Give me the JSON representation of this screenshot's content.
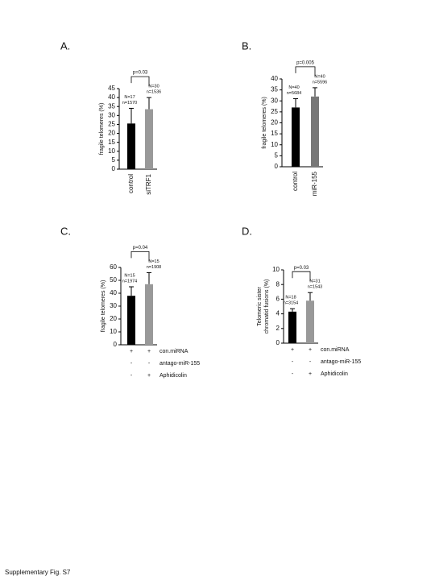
{
  "chart_data": [
    {
      "type": "bar",
      "panel": "A.",
      "ylabel": "fragile telomeres (%)",
      "categories": [
        "control",
        "siTRF1"
      ],
      "values": [
        25.5,
        33.5
      ],
      "errors": [
        8.5,
        6.5
      ],
      "colors": [
        "#000000",
        "#999999"
      ],
      "ylim": [
        0,
        45
      ],
      "yticks": [
        0,
        5,
        10,
        15,
        20,
        25,
        30,
        35,
        40,
        45
      ],
      "p_value": "p=0.03",
      "bar_labels": [
        [
          "N=17",
          "n=1570"
        ],
        [
          "N=30",
          "n=1536"
        ]
      ]
    },
    {
      "type": "bar",
      "panel": "B.",
      "ylabel": "fragile telomeres (%)",
      "categories": [
        "control",
        "miR-155"
      ],
      "values": [
        27,
        32
      ],
      "errors": [
        4,
        4
      ],
      "colors": [
        "#000000",
        "#777777"
      ],
      "ylim": [
        0,
        40
      ],
      "yticks": [
        0,
        5,
        10,
        15,
        20,
        25,
        30,
        35,
        40
      ],
      "p_value": "p=0.005",
      "bar_labels": [
        [
          "N=40",
          "n=5684"
        ],
        [
          "N=40",
          "n=5596"
        ]
      ]
    },
    {
      "type": "bar",
      "panel": "C.",
      "ylabel": "fragile telomeres (%)",
      "values": [
        38,
        47
      ],
      "errors": [
        7,
        9
      ],
      "colors": [
        "#000000",
        "#999999"
      ],
      "ylim": [
        0,
        60
      ],
      "yticks": [
        0,
        10,
        20,
        30,
        40,
        50,
        60
      ],
      "p_value": "p=0.04",
      "bar_labels": [
        [
          "N=15",
          "n=1974"
        ],
        [
          "N=15",
          "n=1908"
        ]
      ],
      "conditions": [
        {
          "label": "con.miRNA",
          "signs": [
            "+",
            "+"
          ]
        },
        {
          "label": "antago-miR-155",
          "signs": [
            "-",
            "-"
          ]
        },
        {
          "label": "Aphidicolin",
          "signs": [
            "-",
            "+"
          ]
        }
      ]
    },
    {
      "type": "bar",
      "panel": "D.",
      "ylabel": [
        "Telomeric sister",
        "chromatid fusions (%)"
      ],
      "values": [
        4.3,
        5.8
      ],
      "errors": [
        0.4,
        1.1
      ],
      "colors": [
        "#000000",
        "#999999"
      ],
      "ylim": [
        0,
        10
      ],
      "yticks": [
        0,
        2,
        4,
        6,
        8,
        10
      ],
      "p_value": "p=0.03",
      "bar_labels": [
        [
          "N=18",
          "n=3154"
        ],
        [
          "N=31",
          "n=1543"
        ]
      ],
      "conditions": [
        {
          "label": "con.miRNA",
          "signs": [
            "+",
            "+"
          ]
        },
        {
          "label": "antago-miR-155",
          "signs": [
            "-",
            "-"
          ]
        },
        {
          "label": "Aphidicolin",
          "signs": [
            "-",
            "+"
          ]
        }
      ]
    }
  ],
  "footer": "Supplementary Fig. S7"
}
